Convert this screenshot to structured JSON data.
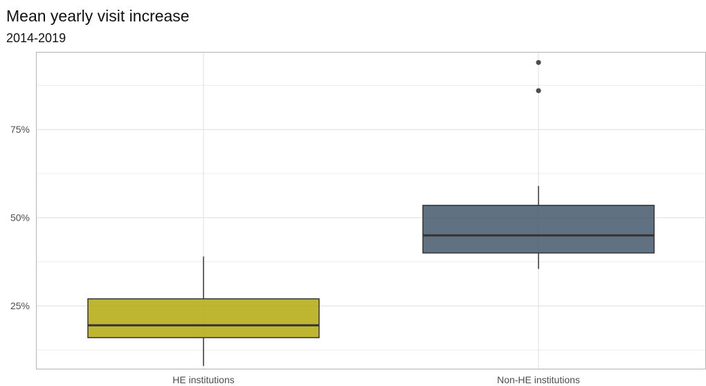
{
  "chart_data": {
    "type": "boxplot",
    "title": "Mean yearly visit increase",
    "subtitle": "2014-2019",
    "xlabel": "",
    "ylabel": "",
    "ylim": [
      0.07,
      0.97
    ],
    "y_ticks": [
      0.25,
      0.5,
      0.75
    ],
    "y_tick_labels": [
      "25%",
      "50%",
      "75%"
    ],
    "grid": true,
    "legend": "none",
    "categories": [
      "HE institutions",
      "Non-HE institutions"
    ],
    "boxes": [
      {
        "category": "HE institutions",
        "whisker_low": 0.08,
        "q1": 0.16,
        "median": 0.195,
        "q3": 0.27,
        "whisker_high": 0.39,
        "outliers": [],
        "color": "#b5ac15"
      },
      {
        "category": "Non-HE institutions",
        "whisker_low": 0.355,
        "q1": 0.4,
        "median": 0.45,
        "q3": 0.535,
        "whisker_high": 0.59,
        "outliers": [
          0.86,
          0.94
        ],
        "color": "#4a5e6f"
      }
    ]
  }
}
